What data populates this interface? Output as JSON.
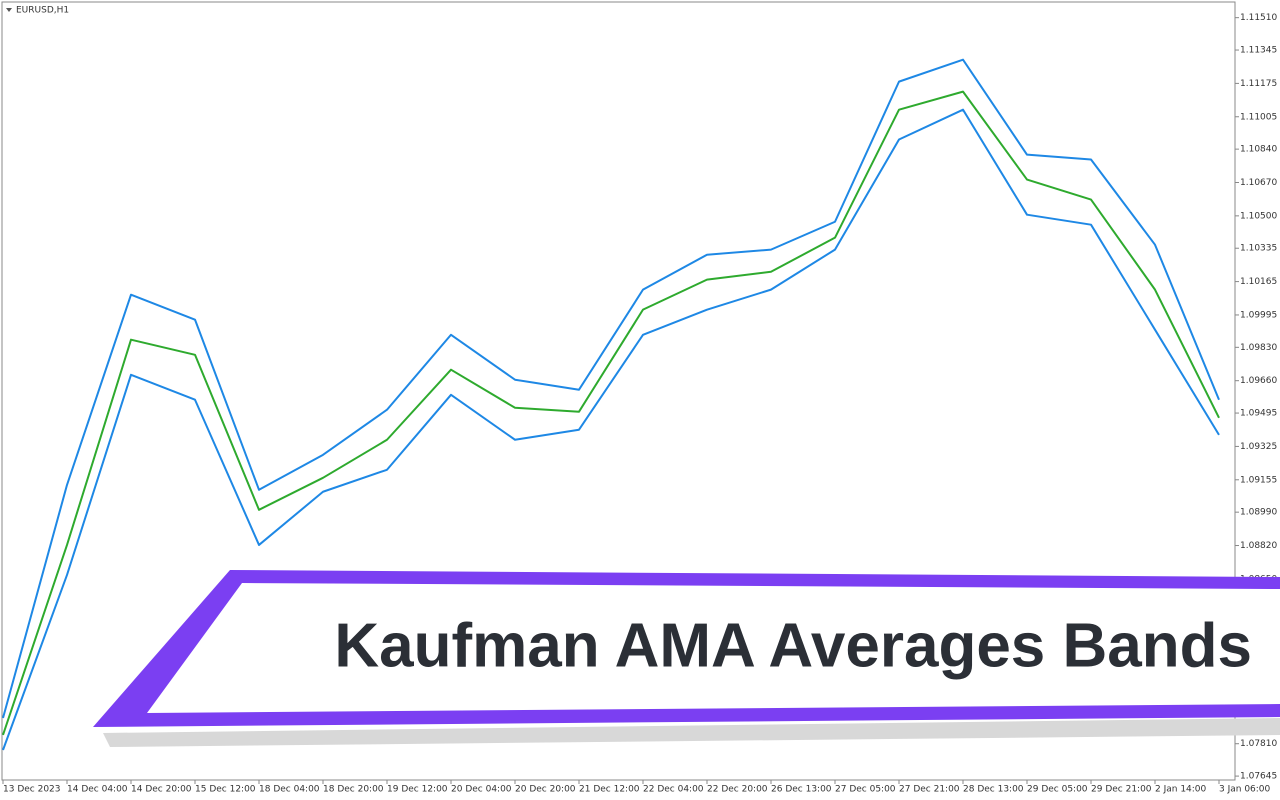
{
  "chart_data": {
    "type": "line",
    "title": "EURUSD,H1",
    "annotations": [
      "Kaufman AMA Averages Bands"
    ],
    "categories": [
      "13 Dec 2023",
      "14 Dec 04:00",
      "14 Dec 20:00",
      "15 Dec 12:00",
      "18 Dec 04:00",
      "18 Dec 20:00",
      "19 Dec 12:00",
      "20 Dec 04:00",
      "20 Dec 20:00",
      "21 Dec 12:00",
      "22 Dec 04:00",
      "22 Dec 20:00",
      "26 Dec 13:00",
      "27 Dec 05:00",
      "27 Dec 21:00",
      "28 Dec 13:00",
      "29 Dec 05:00",
      "29 Dec 21:00",
      "2 Jan 14:00",
      "3 Jan 06:00"
    ],
    "series": [
      {
        "color": "#1e88e5",
        "values": [
          1.07941,
          1.09129,
          1.10098,
          1.09971,
          1.09104,
          1.09282,
          1.09512,
          1.09894,
          1.09665,
          1.09614,
          1.10124,
          1.10302,
          1.10328,
          1.1047,
          1.11184,
          1.11296,
          1.10812,
          1.10787,
          1.10353,
          1.09563
        ]
      },
      {
        "color": "#2eaa2e",
        "values": [
          1.07855,
          1.08823,
          1.09869,
          1.09792,
          1.09002,
          1.09165,
          1.09359,
          1.09716,
          1.09522,
          1.09502,
          1.10022,
          1.10175,
          1.10215,
          1.10389,
          1.11041,
          1.11133,
          1.10685,
          1.10583,
          1.10124,
          1.09471
        ]
      },
      {
        "color": "#1e88e5",
        "values": [
          1.07778,
          1.0867,
          1.0969,
          1.09563,
          1.08823,
          1.09094,
          1.09206,
          1.09588,
          1.09359,
          1.0941,
          1.09894,
          1.10022,
          1.10124,
          1.10328,
          1.10889,
          1.11041,
          1.10506,
          1.10455,
          1.0992,
          1.09384
        ]
      }
    ],
    "ylim": [
      1.0762,
      1.116
    ],
    "yticks": [
      {
        "value": 1.1151,
        "label": "1.11510"
      },
      1.11345,
      1.11175,
      1.11005,
      {
        "value": 1.1084,
        "label": "1.10840"
      },
      {
        "value": 1.1067,
        "label": "1.10670"
      },
      {
        "value": 1.105,
        "label": "1.10500"
      },
      1.10335,
      1.10165,
      1.09995,
      {
        "value": 1.0983,
        "label": "1.09830"
      },
      {
        "value": 1.0966,
        "label": "1.09660"
      },
      1.09495,
      1.09325,
      1.09155,
      {
        "value": 1.0899,
        "label": "1.08990"
      },
      {
        "value": 1.0882,
        "label": "1.08820"
      },
      {
        "value": 1.0865,
        "label": "1.08650"
      },
      {
        "value": 1.0781,
        "label": "1.07810"
      },
      1.07645
    ],
    "grid": false
  }
}
